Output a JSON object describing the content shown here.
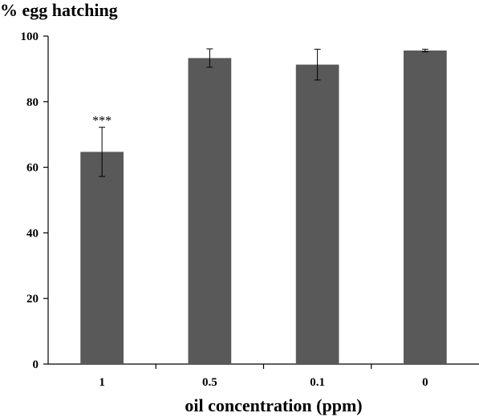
{
  "chart_data": {
    "type": "bar",
    "title": "",
    "ylabel": "% egg hatching",
    "xlabel": "oil concentration (ppm)",
    "categories": [
      "1",
      "0.5",
      "0.1",
      "0"
    ],
    "values": [
      64.7,
      93.3,
      91.3,
      95.6
    ],
    "errors": [
      7.5,
      2.8,
      4.7,
      0.4
    ],
    "annotations": [
      "***",
      "",
      "",
      ""
    ],
    "ylim": [
      0,
      100
    ],
    "yticks": [
      "0",
      "20",
      "40",
      "60",
      "80",
      "100"
    ],
    "bar_color": "#595959",
    "grid": false,
    "legend": "none"
  }
}
